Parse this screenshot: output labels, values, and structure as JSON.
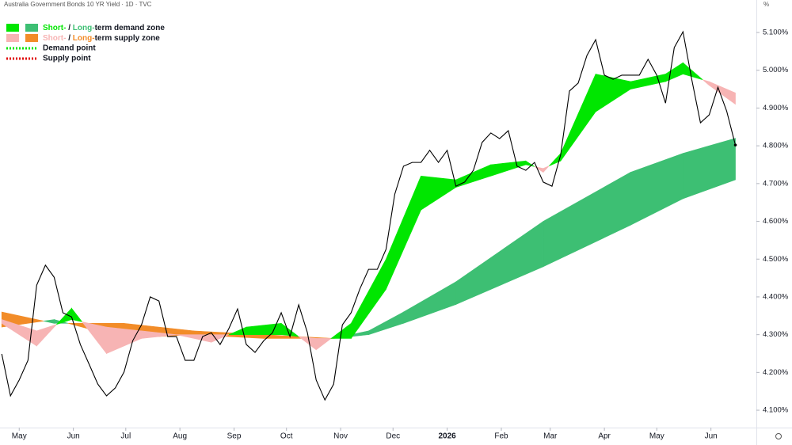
{
  "chart_data": {
    "type": "line",
    "title": "Australia Government Bonds 10 YR Yield · 1D · TVC",
    "y_unit": "%",
    "color": "#000000",
    "x": [
      -10,
      -5,
      0,
      5,
      10,
      15,
      20,
      25,
      30,
      35,
      40,
      45,
      50,
      55,
      60,
      65,
      70,
      75,
      80,
      85,
      90,
      95,
      100,
      105,
      110,
      115,
      120,
      125,
      130,
      135,
      140,
      145,
      150,
      155,
      160,
      165,
      170,
      175,
      180,
      185,
      190,
      195,
      200,
      205,
      210,
      215,
      220,
      225,
      230,
      235,
      240,
      245,
      250,
      255,
      260,
      265,
      270,
      275,
      280,
      285,
      290,
      295,
      300,
      305,
      310,
      315,
      320,
      325,
      330,
      335,
      340,
      345,
      350,
      355,
      360,
      365,
      370,
      375,
      380,
      385,
      390,
      395,
      400,
      405,
      410
    ],
    "values": [
      4.249,
      4.138,
      4.18,
      4.232,
      4.431,
      4.484,
      4.452,
      4.358,
      4.347,
      4.274,
      4.222,
      4.169,
      4.138,
      4.159,
      4.201,
      4.284,
      4.326,
      4.4,
      4.389,
      4.295,
      4.295,
      4.232,
      4.232,
      4.295,
      4.305,
      4.274,
      4.316,
      4.368,
      4.274,
      4.253,
      4.284,
      4.305,
      4.358,
      4.295,
      4.379,
      4.305,
      4.18,
      4.127,
      4.169,
      4.326,
      4.358,
      4.421,
      4.473,
      4.473,
      4.526,
      4.672,
      4.746,
      4.756,
      4.756,
      4.788,
      4.756,
      4.788,
      4.693,
      4.704,
      4.735,
      4.809,
      4.834,
      4.819,
      4.84,
      4.746,
      4.735,
      4.756,
      4.704,
      4.693,
      4.777,
      4.945,
      4.966,
      5.039,
      5.081,
      4.987,
      4.976,
      4.987,
      4.987,
      4.987,
      5.029,
      4.987,
      4.913,
      5.06,
      5.102,
      4.976,
      4.861,
      4.882,
      4.955,
      4.892,
      4.802
    ],
    "zones": [
      {
        "demand_color": "#00e600",
        "supply_color": "#f7b4b4",
        "x": [
          -10,
          10,
          30,
          50,
          70,
          90,
          110,
          130,
          150,
          170,
          190,
          210,
          230,
          250,
          270,
          290,
          300,
          310,
          330,
          350,
          370,
          380,
          395,
          410
        ],
        "fast": [
          4.33,
          4.27,
          4.37,
          4.25,
          4.29,
          4.3,
          4.28,
          4.32,
          4.33,
          4.26,
          4.33,
          4.5,
          4.72,
          4.71,
          4.75,
          4.76,
          4.73,
          4.78,
          4.99,
          4.97,
          4.99,
          5.02,
          4.96,
          4.91
        ],
        "slow": [
          4.34,
          4.31,
          4.34,
          4.32,
          4.31,
          4.3,
          4.3,
          4.3,
          4.3,
          4.29,
          4.29,
          4.42,
          4.63,
          4.69,
          4.72,
          4.75,
          4.74,
          4.76,
          4.89,
          4.95,
          4.97,
          4.99,
          4.97,
          4.94
        ]
      },
      {
        "demand_color": "#3dbf73",
        "supply_color": "#f28c28",
        "x": [
          -10,
          20,
          60,
          100,
          140,
          180,
          200,
          220,
          250,
          300,
          350,
          380,
          410
        ],
        "fast": [
          4.32,
          4.34,
          4.29,
          4.3,
          4.29,
          4.29,
          4.31,
          4.36,
          4.44,
          4.6,
          4.73,
          4.78,
          4.82
        ],
        "slow": [
          4.36,
          4.33,
          4.33,
          4.31,
          4.3,
          4.29,
          4.3,
          4.33,
          4.38,
          4.48,
          4.59,
          4.66,
          4.71
        ]
      }
    ],
    "legend": [
      {
        "short": "Short-",
        "sep": " / ",
        "long": "Long-",
        "rest": "term demand zone",
        "kind": "demand"
      },
      {
        "short": "Short-",
        "sep": " / ",
        "long": "Long-",
        "rest": "term supply zone",
        "kind": "supply"
      }
    ],
    "points_legend": [
      {
        "name": "Demand point",
        "color": "#00e600"
      },
      {
        "name": "Supply point",
        "color": "#e00000"
      }
    ],
    "xlim": [
      -11,
      422
    ],
    "xticks": [
      {
        "value": 0,
        "label": "May"
      },
      {
        "value": 31,
        "label": "Jun"
      },
      {
        "value": 61,
        "label": "Jul"
      },
      {
        "value": 92,
        "label": "Aug"
      },
      {
        "value": 123,
        "label": "Sep"
      },
      {
        "value": 153,
        "label": "Oct"
      },
      {
        "value": 184,
        "label": "Nov"
      },
      {
        "value": 214,
        "label": "Dec"
      },
      {
        "value": 245,
        "label": "2026"
      },
      {
        "value": 276,
        "label": "Feb"
      },
      {
        "value": 304,
        "label": "Mar"
      },
      {
        "value": 335,
        "label": "Apr"
      },
      {
        "value": 365,
        "label": "May"
      },
      {
        "value": 396,
        "label": "Jun"
      }
    ],
    "ylim": [
      4.054,
      5.186
    ],
    "yticks": [
      {
        "value": 4.1,
        "label": "4.100%"
      },
      {
        "value": 4.2,
        "label": "4.200%"
      },
      {
        "value": 4.3,
        "label": "4.300%"
      },
      {
        "value": 4.4,
        "label": "4.400%"
      },
      {
        "value": 4.5,
        "label": "4.500%"
      },
      {
        "value": 4.6,
        "label": "4.600%"
      },
      {
        "value": 4.7,
        "label": "4.700%"
      },
      {
        "value": 4.8,
        "label": "4.800%"
      },
      {
        "value": 4.9,
        "label": "4.900%"
      },
      {
        "value": 5.0,
        "label": "5.000%"
      },
      {
        "value": 5.1,
        "label": "5.100%"
      }
    ]
  }
}
